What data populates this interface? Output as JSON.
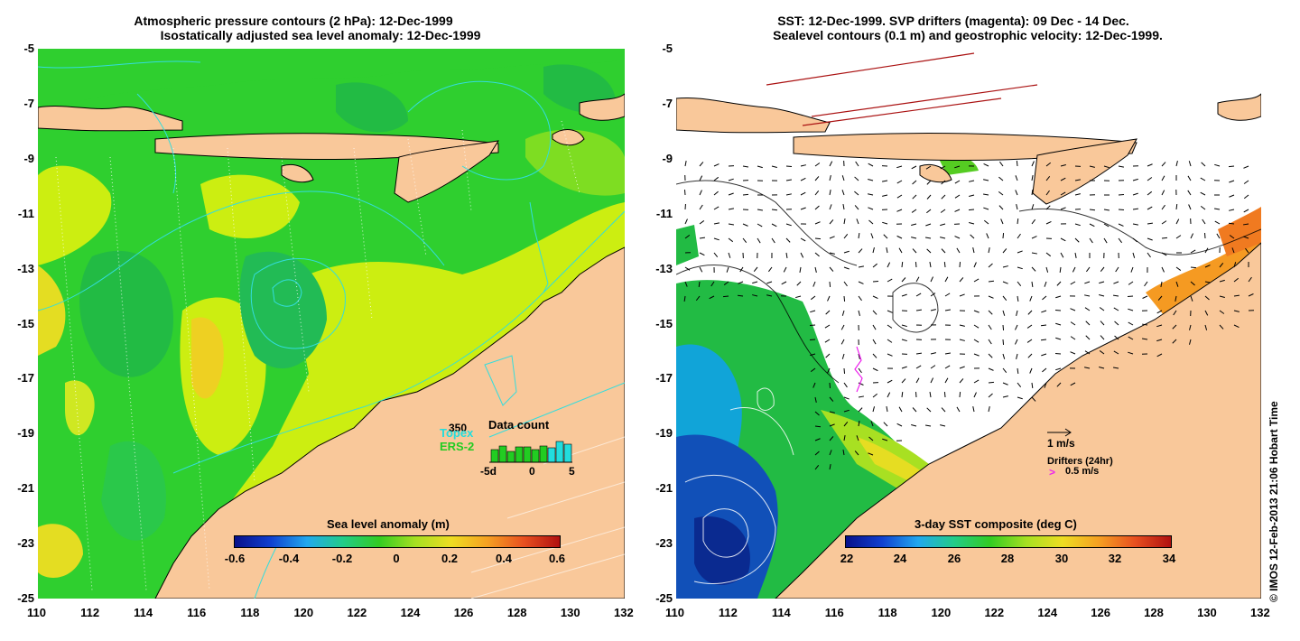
{
  "left_panel": {
    "title_line1": "Atmospheric pressure contours (2 hPa): 12-Dec-1999",
    "title_line2": "Isostatically adjusted sea level anomaly: 12-Dec-1999",
    "colorbar_title": "Sea level anomaly (m)",
    "colorbar_ticks": [
      "-0.6",
      "-0.4",
      "-0.2",
      "0",
      "0.2",
      "0.4",
      "0.6"
    ],
    "legend": {
      "count_label": "350",
      "topex_label": "Topex",
      "ers_label": "ERS-2",
      "data_count_title": "Data count",
      "axis_ticks": [
        "-5d",
        "0",
        "5"
      ],
      "colors": {
        "topex": "#22dddd",
        "ers": "#22cc22"
      }
    }
  },
  "right_panel": {
    "title_line1": "SST: 12-Dec-1999. SVP drifters (magenta): 09 Dec - 14 Dec.",
    "title_line2": "Sealevel contours (0.1 m) and geostrophic velocity: 12-Dec-1999.",
    "colorbar_title": "3-day SST composite (deg C)",
    "colorbar_ticks": [
      "22",
      "24",
      "26",
      "28",
      "30",
      "32",
      "34"
    ],
    "velocity_scale_label": "1 m/s",
    "drifters_label": "Drifters (24hr)",
    "drifter_speed_label": "0.5 m/s",
    "drifter_marker": ">"
  },
  "axes": {
    "x_ticks": [
      "110",
      "112",
      "114",
      "116",
      "118",
      "120",
      "122",
      "124",
      "126",
      "128",
      "130",
      "132"
    ],
    "y_ticks": [
      "-5",
      "-7",
      "-9",
      "-11",
      "-13",
      "-15",
      "-17",
      "-19",
      "-21",
      "-23",
      "-25"
    ],
    "lon_range": [
      110,
      132
    ],
    "lat_range": [
      -25,
      -5
    ]
  },
  "credit": "© IMOS 12-Feb-2013 21:06 Hobart Time",
  "colors": {
    "land": "#f9c89a",
    "ocean_green": "#2fcf2f",
    "ocean_yellowgreen": "#ccee11",
    "contour_cyan": "#33dddd",
    "drifter_magenta": "#ee22ee"
  }
}
